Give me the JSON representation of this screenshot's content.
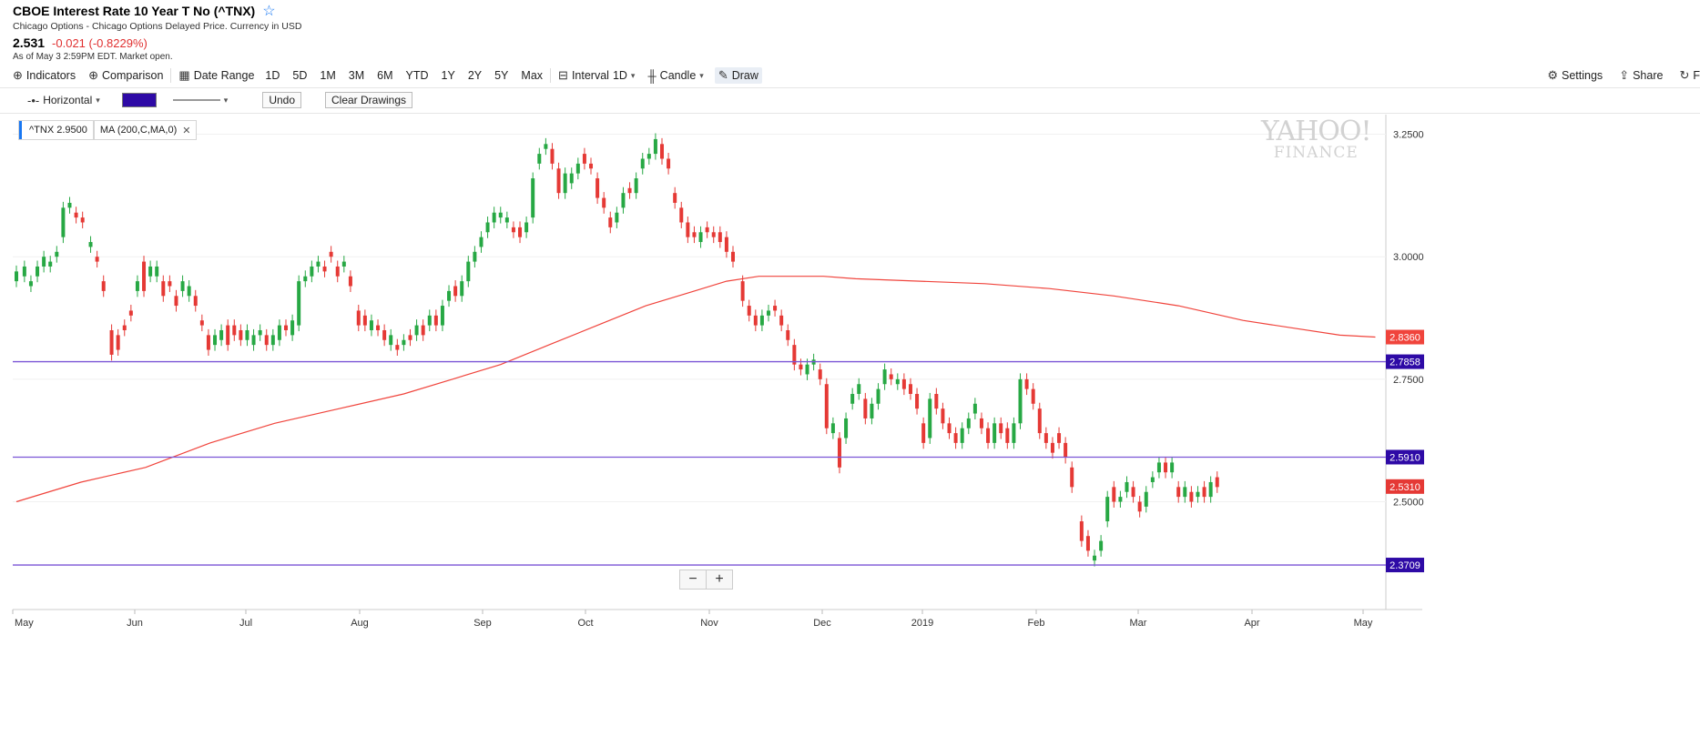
{
  "header": {
    "title": "CBOE Interest Rate 10 Year T No (^TNX)",
    "subtitle": "Chicago Options - Chicago Options Delayed Price. Currency in USD",
    "price": "2.531",
    "change": "-0.021 (-0.8229%)",
    "as_of": "As of May 3 2:59PM EDT. Market open."
  },
  "toolbar": {
    "indicators": "Indicators",
    "comparison": "Comparison",
    "date_range": "Date Range",
    "ranges": [
      "1D",
      "5D",
      "1M",
      "3M",
      "6M",
      "YTD",
      "1Y",
      "2Y",
      "5Y",
      "Max"
    ],
    "interval": "Interval",
    "interval_value": "1D",
    "chart_type": "Candle",
    "draw": "Draw",
    "settings": "Settings",
    "share": "Share",
    "clipped": "F"
  },
  "drawbar": {
    "tool": "Horizontal",
    "swatch_color": "#2e0aa6",
    "undo": "Undo",
    "clear": "Clear Drawings"
  },
  "legend": {
    "ticker": "^TNX 2.9500",
    "ma": "MA (200,C,MA,0)"
  },
  "watermark": {
    "line1": "YAHOO!",
    "line2": "FINANCE"
  },
  "colors": {
    "up": "#27a844",
    "down": "#e53935",
    "ma": "#f0443c",
    "hline": "#7a55d6",
    "hline_label": "#2e0aa6",
    "last_label": "#e53935"
  },
  "chart_data": {
    "type": "candlestick",
    "ylim": [
      2.28,
      3.29
    ],
    "y_ticks": [
      "3.2500",
      "3.0000",
      "2.7500",
      "2.5000"
    ],
    "x_ticks": [
      "May",
      "Jun",
      "Jul",
      "Aug",
      "Sep",
      "Oct",
      "Nov",
      "Dec",
      "2019",
      "Feb",
      "Mar",
      "Apr",
      "May"
    ],
    "horizontal_lines": [
      "2.7858",
      "2.5910",
      "2.3709"
    ],
    "last_price_label": "2.5310",
    "ma_label": "2.8360",
    "ma_series": [
      [
        0,
        2.5
      ],
      [
        40,
        2.54
      ],
      [
        80,
        2.57
      ],
      [
        120,
        2.62
      ],
      [
        160,
        2.66
      ],
      [
        200,
        2.69
      ],
      [
        240,
        2.72
      ],
      [
        270,
        2.75
      ],
      [
        300,
        2.78
      ],
      [
        330,
        2.82
      ],
      [
        360,
        2.86
      ],
      [
        390,
        2.9
      ],
      [
        420,
        2.93
      ],
      [
        440,
        2.95
      ],
      [
        460,
        2.96
      ],
      [
        480,
        2.96
      ],
      [
        500,
        2.96
      ],
      [
        520,
        2.955
      ],
      [
        560,
        2.95
      ],
      [
        600,
        2.945
      ],
      [
        640,
        2.935
      ],
      [
        680,
        2.92
      ],
      [
        720,
        2.9
      ],
      [
        760,
        2.87
      ],
      [
        790,
        2.855
      ],
      [
        820,
        2.84
      ],
      [
        842,
        2.836
      ]
    ],
    "candles": [
      [
        0,
        2.95,
        2.97
      ],
      [
        5,
        2.96,
        2.98
      ],
      [
        9,
        2.94,
        2.95
      ],
      [
        13,
        2.96,
        2.98
      ],
      [
        17,
        2.98,
        3.0
      ],
      [
        21,
        2.98,
        2.99
      ],
      [
        25,
        3.0,
        3.01
      ],
      [
        29,
        3.04,
        3.1
      ],
      [
        33,
        3.1,
        3.11
      ],
      [
        37,
        3.09,
        3.08
      ],
      [
        41,
        3.08,
        3.07
      ],
      [
        46,
        3.02,
        3.03
      ],
      [
        50,
        3.0,
        2.99
      ],
      [
        54,
        2.95,
        2.93
      ],
      [
        59,
        2.85,
        2.8
      ],
      [
        63,
        2.84,
        2.81
      ],
      [
        67,
        2.86,
        2.85
      ],
      [
        71,
        2.89,
        2.88
      ],
      [
        75,
        2.93,
        2.95
      ],
      [
        79,
        2.99,
        2.93
      ],
      [
        83,
        2.96,
        2.98
      ],
      [
        87,
        2.96,
        2.98
      ],
      [
        91,
        2.95,
        2.92
      ],
      [
        95,
        2.95,
        2.94
      ],
      [
        99,
        2.92,
        2.9
      ],
      [
        103,
        2.93,
        2.95
      ],
      [
        107,
        2.92,
        2.94
      ],
      [
        111,
        2.92,
        2.9
      ],
      [
        115,
        2.87,
        2.86
      ],
      [
        119,
        2.84,
        2.81
      ],
      [
        123,
        2.82,
        2.84
      ],
      [
        127,
        2.83,
        2.85
      ],
      [
        131,
        2.86,
        2.82
      ],
      [
        135,
        2.86,
        2.84
      ],
      [
        139,
        2.85,
        2.83
      ],
      [
        143,
        2.83,
        2.85
      ],
      [
        147,
        2.82,
        2.84
      ],
      [
        151,
        2.84,
        2.85
      ],
      [
        155,
        2.84,
        2.82
      ],
      [
        159,
        2.82,
        2.84
      ],
      [
        163,
        2.83,
        2.86
      ],
      [
        167,
        2.86,
        2.85
      ],
      [
        171,
        2.84,
        2.87
      ],
      [
        175,
        2.86,
        2.95
      ],
      [
        179,
        2.95,
        2.96
      ],
      [
        183,
        2.96,
        2.98
      ],
      [
        187,
        2.98,
        2.99
      ],
      [
        191,
        2.98,
        2.97
      ],
      [
        195,
        3.01,
        3.0
      ],
      [
        199,
        2.98,
        2.96
      ],
      [
        203,
        2.98,
        2.99
      ],
      [
        207,
        2.96,
        2.94
      ],
      [
        212,
        2.89,
        2.86
      ],
      [
        216,
        2.88,
        2.86
      ],
      [
        220,
        2.85,
        2.87
      ],
      [
        224,
        2.86,
        2.85
      ],
      [
        228,
        2.85,
        2.83
      ],
      [
        232,
        2.82,
        2.84
      ],
      [
        236,
        2.82,
        2.81
      ],
      [
        240,
        2.82,
        2.83
      ],
      [
        244,
        2.84,
        2.83
      ],
      [
        248,
        2.84,
        2.86
      ],
      [
        252,
        2.86,
        2.84
      ],
      [
        256,
        2.86,
        2.88
      ],
      [
        260,
        2.88,
        2.86
      ],
      [
        264,
        2.86,
        2.9
      ],
      [
        268,
        2.91,
        2.93
      ],
      [
        272,
        2.94,
        2.92
      ],
      [
        276,
        2.92,
        2.95
      ],
      [
        280,
        2.95,
        2.99
      ],
      [
        284,
        2.99,
        3.01
      ],
      [
        288,
        3.02,
        3.04
      ],
      [
        292,
        3.05,
        3.07
      ],
      [
        296,
        3.07,
        3.09
      ],
      [
        300,
        3.08,
        3.09
      ],
      [
        304,
        3.07,
        3.08
      ],
      [
        308,
        3.06,
        3.05
      ],
      [
        312,
        3.06,
        3.04
      ],
      [
        316,
        3.05,
        3.07
      ],
      [
        320,
        3.08,
        3.16
      ],
      [
        324,
        3.19,
        3.21
      ],
      [
        328,
        3.22,
        3.23
      ],
      [
        332,
        3.22,
        3.19
      ],
      [
        336,
        3.18,
        3.13
      ],
      [
        340,
        3.13,
        3.17
      ],
      [
        344,
        3.15,
        3.17
      ],
      [
        348,
        3.17,
        3.19
      ],
      [
        352,
        3.21,
        3.19
      ],
      [
        356,
        3.19,
        3.18
      ],
      [
        360,
        3.16,
        3.12
      ],
      [
        364,
        3.12,
        3.1
      ],
      [
        368,
        3.08,
        3.06
      ],
      [
        372,
        3.07,
        3.09
      ],
      [
        376,
        3.1,
        3.13
      ],
      [
        380,
        3.14,
        3.13
      ],
      [
        384,
        3.13,
        3.16
      ],
      [
        388,
        3.18,
        3.2
      ],
      [
        392,
        3.2,
        3.21
      ],
      [
        396,
        3.21,
        3.24
      ],
      [
        400,
        3.23,
        3.2
      ],
      [
        404,
        3.2,
        3.18
      ],
      [
        408,
        3.13,
        3.11
      ],
      [
        412,
        3.1,
        3.07
      ],
      [
        416,
        3.07,
        3.04
      ],
      [
        420,
        3.05,
        3.04
      ],
      [
        424,
        3.03,
        3.05
      ],
      [
        428,
        3.06,
        3.05
      ],
      [
        432,
        3.05,
        3.04
      ],
      [
        436,
        3.05,
        3.03
      ],
      [
        440,
        3.04,
        3.01
      ],
      [
        444,
        3.01,
        2.99
      ],
      [
        450,
        2.95,
        2.91
      ],
      [
        454,
        2.9,
        2.88
      ],
      [
        458,
        2.88,
        2.86
      ],
      [
        462,
        2.86,
        2.88
      ],
      [
        466,
        2.88,
        2.89
      ],
      [
        470,
        2.9,
        2.89
      ],
      [
        474,
        2.88,
        2.86
      ],
      [
        478,
        2.85,
        2.83
      ],
      [
        482,
        2.82,
        2.78
      ],
      [
        486,
        2.78,
        2.77
      ],
      [
        490,
        2.76,
        2.78
      ],
      [
        494,
        2.78,
        2.79
      ],
      [
        498,
        2.77,
        2.75
      ],
      [
        502,
        2.74,
        2.65
      ],
      [
        506,
        2.64,
        2.66
      ],
      [
        510,
        2.63,
        2.57
      ],
      [
        514,
        2.63,
        2.67
      ],
      [
        518,
        2.7,
        2.72
      ],
      [
        522,
        2.72,
        2.74
      ],
      [
        526,
        2.71,
        2.67
      ],
      [
        530,
        2.67,
        2.7
      ],
      [
        534,
        2.7,
        2.73
      ],
      [
        538,
        2.74,
        2.77
      ],
      [
        542,
        2.76,
        2.75
      ],
      [
        546,
        2.74,
        2.75
      ],
      [
        550,
        2.75,
        2.73
      ],
      [
        554,
        2.74,
        2.72
      ],
      [
        558,
        2.72,
        2.69
      ],
      [
        562,
        2.66,
        2.62
      ],
      [
        566,
        2.63,
        2.71
      ],
      [
        570,
        2.72,
        2.69
      ],
      [
        574,
        2.69,
        2.66
      ],
      [
        578,
        2.66,
        2.64
      ],
      [
        582,
        2.64,
        2.62
      ],
      [
        586,
        2.62,
        2.65
      ],
      [
        590,
        2.65,
        2.67
      ],
      [
        594,
        2.68,
        2.7
      ],
      [
        598,
        2.67,
        2.65
      ],
      [
        602,
        2.65,
        2.62
      ],
      [
        606,
        2.62,
        2.66
      ],
      [
        610,
        2.66,
        2.64
      ],
      [
        614,
        2.65,
        2.62
      ],
      [
        618,
        2.62,
        2.66
      ],
      [
        622,
        2.66,
        2.75
      ],
      [
        626,
        2.75,
        2.73
      ],
      [
        630,
        2.73,
        2.7
      ],
      [
        634,
        2.69,
        2.64
      ],
      [
        638,
        2.64,
        2.62
      ],
      [
        642,
        2.62,
        2.6
      ],
      [
        646,
        2.64,
        2.62
      ],
      [
        650,
        2.62,
        2.59
      ],
      [
        654,
        2.57,
        2.53
      ],
      [
        660,
        2.46,
        2.42
      ],
      [
        664,
        2.43,
        2.4
      ],
      [
        668,
        2.38,
        2.39
      ],
      [
        672,
        2.4,
        2.42
      ],
      [
        676,
        2.46,
        2.51
      ],
      [
        680,
        2.53,
        2.5
      ],
      [
        684,
        2.5,
        2.51
      ],
      [
        688,
        2.52,
        2.54
      ],
      [
        692,
        2.53,
        2.51
      ],
      [
        696,
        2.5,
        2.48
      ],
      [
        700,
        2.49,
        2.52
      ],
      [
        704,
        2.54,
        2.55
      ],
      [
        708,
        2.56,
        2.58
      ],
      [
        712,
        2.58,
        2.56
      ],
      [
        716,
        2.56,
        2.58
      ],
      [
        720,
        2.53,
        2.51
      ],
      [
        724,
        2.51,
        2.53
      ],
      [
        728,
        2.52,
        2.5
      ],
      [
        732,
        2.51,
        2.52
      ],
      [
        736,
        2.53,
        2.51
      ],
      [
        740,
        2.51,
        2.54
      ],
      [
        744,
        2.55,
        2.53
      ]
    ]
  }
}
